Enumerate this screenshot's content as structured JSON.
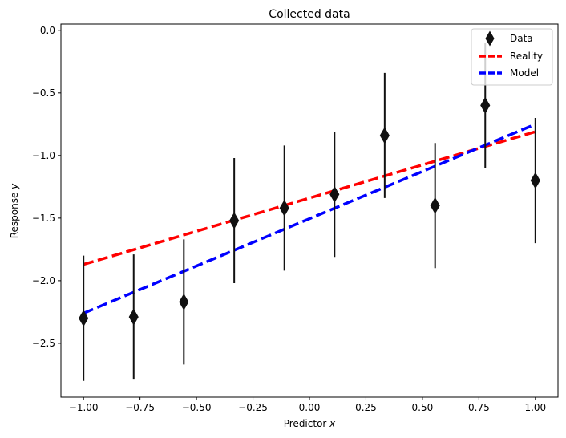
{
  "chart_data": {
    "type": "scatter",
    "title": "Collected data",
    "xlabel_prefix": "Predictor ",
    "xlabel_var": "x",
    "ylabel_prefix": "Response ",
    "ylabel_var": "y",
    "xlim": [
      -1.1,
      1.1
    ],
    "ylim": [
      -2.93,
      0.05
    ],
    "xticks": [
      -1.0,
      -0.75,
      -0.5,
      -0.25,
      0.0,
      0.25,
      0.5,
      0.75,
      1.0
    ],
    "xtick_labels": [
      "−1.00",
      "−0.75",
      "−0.50",
      "−0.25",
      "0.00",
      "0.25",
      "0.50",
      "0.75",
      "1.00"
    ],
    "yticks": [
      0.0,
      -0.5,
      -1.0,
      -1.5,
      -2.0,
      -2.5
    ],
    "ytick_labels": [
      "0.0",
      "−0.5",
      "−1.0",
      "−1.5",
      "−2.0",
      "−2.5"
    ],
    "grid": false,
    "legend_position": "top-right",
    "data_series": {
      "name": "Data",
      "color": "#111111",
      "marker": "thin-diamond",
      "x": [
        -1.0,
        -0.778,
        -0.556,
        -0.333,
        -0.111,
        0.111,
        0.333,
        0.556,
        0.778,
        1.0
      ],
      "y": [
        -2.3,
        -2.29,
        -2.17,
        -1.52,
        -1.42,
        -1.31,
        -0.84,
        -1.4,
        -0.6,
        -1.2
      ],
      "yerr": 0.5
    },
    "lines": [
      {
        "name": "Reality",
        "color": "#ff0000",
        "style": "dashed",
        "x": [
          -1.0,
          1.0
        ],
        "y": [
          -1.87,
          -0.81
        ]
      },
      {
        "name": "Model",
        "color": "#0000ff",
        "style": "dashed",
        "x": [
          -1.0,
          1.0
        ],
        "y": [
          -2.26,
          -0.75
        ]
      }
    ]
  }
}
